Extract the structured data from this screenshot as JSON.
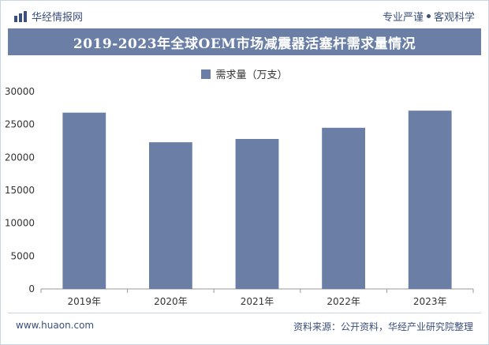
{
  "header": {
    "brand_name": "华经情报网",
    "slogan_left": "专业严谨",
    "slogan_right": "客观科学"
  },
  "title": "2019-2023年全球OEM市场减震器活塞杆需求量情况",
  "footer": {
    "website": "www.huaon.com",
    "source": "资料来源：公开资料，华经产业研究院整理"
  },
  "colors": {
    "bar": "#6a7ea6",
    "title_bg": "#6a7ea6",
    "text": "#3a4f7a"
  },
  "chart_data": {
    "type": "bar",
    "categories": [
      "2019年",
      "2020年",
      "2021年",
      "2022年",
      "2023年"
    ],
    "series": [
      {
        "name": "需求量（万支）",
        "values": [
          26800,
          22300,
          22800,
          24500,
          27100
        ]
      }
    ],
    "ylim": [
      0,
      30000
    ],
    "yticks": [
      0,
      5000,
      10000,
      15000,
      20000,
      25000,
      30000
    ],
    "grid": false,
    "legend_position": "top-center"
  }
}
